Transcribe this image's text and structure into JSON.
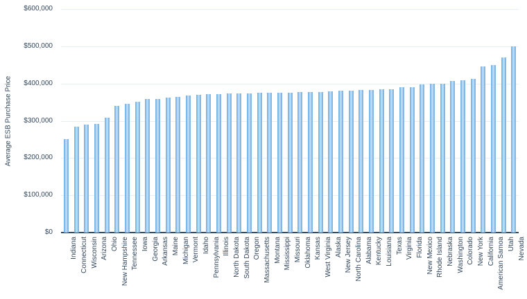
{
  "chart_data": {
    "type": "bar",
    "title": "",
    "xlabel": "",
    "ylabel": "Average ESB Purchase Price",
    "ylim": [
      0,
      600000
    ],
    "ytick_step": 100000,
    "ytick_labels": [
      "$0",
      "$100,000",
      "$200,000",
      "$300,000",
      "$400,000",
      "$500,000",
      "$600,000"
    ],
    "grid": true,
    "legend": false,
    "categories": [
      "Indiana",
      "Connecticut",
      "Wisconsin",
      "Arizona",
      "Ohio",
      "New Hampshire",
      "Tennessee",
      "Iowa",
      "Georgia",
      "Arkansas",
      "Maine",
      "Michigan",
      "Vermont",
      "Idaho",
      "Pennsylvania",
      "Illinois",
      "North Dakota",
      "South Dakota",
      "Oregon",
      "Massachusetts",
      "Montana",
      "Mississippi",
      "Missouri",
      "Oklahoma",
      "Kansas",
      "West Virginia",
      "Alaska",
      "New Jersey",
      "North Carolina",
      "Alabama",
      "Kentucky",
      "Louisiana",
      "Texas",
      "Virginia",
      "Florida",
      "New Mexico",
      "Rhode Island",
      "Nebraska",
      "Washington",
      "Colorado",
      "New York",
      "California",
      "American Samoa",
      "Utah",
      "Nevada"
    ],
    "values": [
      251000,
      284000,
      289000,
      292000,
      309000,
      340000,
      346000,
      351000,
      358000,
      359000,
      362000,
      364000,
      367000,
      369000,
      371000,
      372000,
      373000,
      374000,
      374000,
      375000,
      375000,
      376000,
      376000,
      377000,
      377000,
      378000,
      379000,
      380000,
      381000,
      382000,
      383000,
      384000,
      385000,
      390000,
      391000,
      398000,
      399000,
      400000,
      406000,
      408000,
      413000,
      445000,
      449000,
      470000,
      500000
    ],
    "colors": {
      "bar_edge": "#7eb7e7",
      "bar_fill": "#bcdcf4",
      "gridline": "#e4eff9",
      "axis_line": "#2e4a66",
      "text": "#31465c",
      "background": "#ffffff"
    }
  }
}
